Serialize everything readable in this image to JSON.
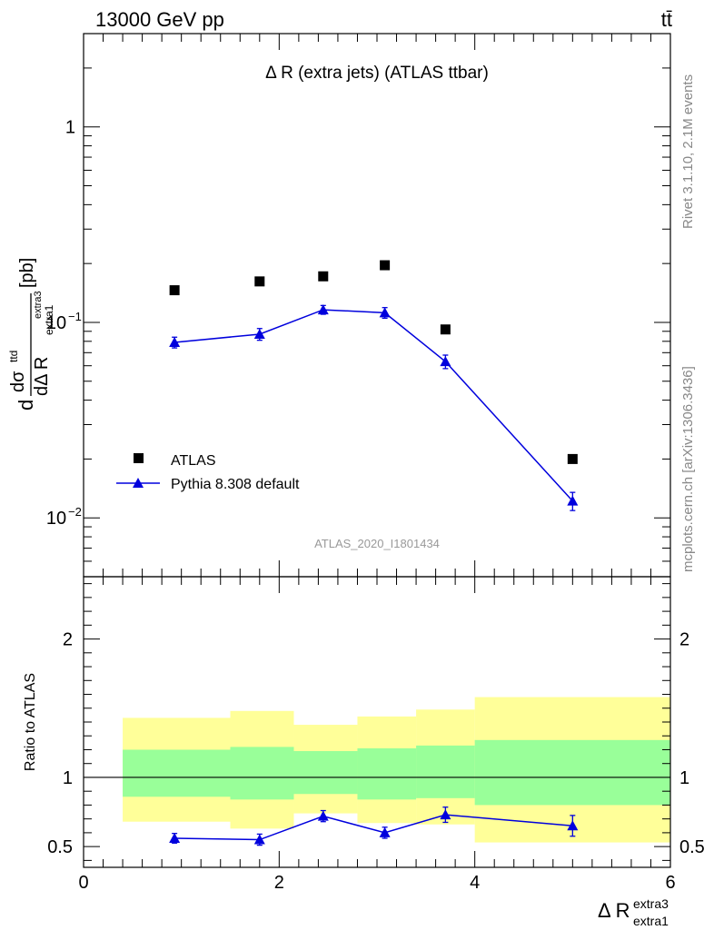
{
  "header": {
    "left": "13000 GeV pp",
    "right": "tt̄"
  },
  "side_labels": {
    "rivet": "Rivet 3.1.10,  2.1M events",
    "mcplots": "mcplots.cern.ch [arXiv:1306.3436]"
  },
  "chart_data": [
    {
      "type": "scatter",
      "title": "Δ R (extra jets) (ATLAS ttbar)",
      "analysis_id": "ATLAS_2020_I1801434",
      "ylabel_main": "d",
      "ylabel_num": "dσ",
      "ylabel_num_sup": "ttd",
      "ylabel_den": "dΔ R",
      "ylabel_den_sub": "extra1",
      "ylabel_den_sup": "extra3",
      "ylabel_unit": "[pb]",
      "yscale": "log",
      "ylim": [
        0.005,
        3.0
      ],
      "xlim": [
        0,
        6
      ],
      "ytick_labels": [
        {
          "value": 1,
          "label": "1"
        },
        {
          "value": 0.1,
          "label": "10",
          "exp": "−1"
        },
        {
          "value": 0.01,
          "label": "10",
          "exp": "−2"
        }
      ],
      "legend_position": "lower-left",
      "series": [
        {
          "name": "ATLAS",
          "marker": "square",
          "color": "#000000",
          "x": [
            0.93,
            1.8,
            2.45,
            3.08,
            3.7,
            5.0
          ],
          "y": [
            0.146,
            0.162,
            0.172,
            0.196,
            0.092,
            0.02
          ]
        },
        {
          "name": "Pythia 8.308 default",
          "marker": "triangle",
          "color": "#0000dd",
          "x": [
            0.93,
            1.8,
            2.45,
            3.08,
            3.7,
            5.0
          ],
          "y": [
            0.079,
            0.087,
            0.116,
            0.112,
            0.063,
            0.0122
          ],
          "yerr_lo": [
            0.005,
            0.006,
            0.006,
            0.007,
            0.005,
            0.0013
          ],
          "yerr_hi": [
            0.005,
            0.006,
            0.006,
            0.007,
            0.005,
            0.0013
          ]
        }
      ]
    },
    {
      "type": "scatter",
      "ylabel": "Ratio to ATLAS",
      "xlabel": "Δ R",
      "xlabel_sup": "extra3",
      "xlabel_sub": "extra1",
      "xlim": [
        0,
        6
      ],
      "ylim": [
        0.35,
        2.45
      ],
      "xtick_labels": [
        "0",
        "2",
        "4",
        "6"
      ],
      "ytick_labels": [
        "0.5",
        "1",
        "2"
      ],
      "reference_line": 1,
      "bands": [
        {
          "x0": 0.4,
          "x1": 1.5,
          "yellow": [
            0.68,
            1.43
          ],
          "green": [
            0.86,
            1.2
          ]
        },
        {
          "x0": 1.5,
          "x1": 2.15,
          "yellow": [
            0.63,
            1.48
          ],
          "green": [
            0.84,
            1.22
          ]
        },
        {
          "x0": 2.15,
          "x1": 2.8,
          "yellow": [
            0.74,
            1.38
          ],
          "green": [
            0.88,
            1.19
          ]
        },
        {
          "x0": 2.8,
          "x1": 3.4,
          "yellow": [
            0.67,
            1.44
          ],
          "green": [
            0.84,
            1.21
          ]
        },
        {
          "x0": 3.4,
          "x1": 4.0,
          "yellow": [
            0.66,
            1.49
          ],
          "green": [
            0.85,
            1.23
          ]
        },
        {
          "x0": 4.0,
          "x1": 6.0,
          "yellow": [
            0.53,
            1.58
          ],
          "green": [
            0.8,
            1.27
          ]
        }
      ],
      "series": [
        {
          "name": "Pythia 8.308 default",
          "color": "#0000dd",
          "x": [
            0.93,
            1.8,
            2.45,
            3.08,
            3.7,
            5.0
          ],
          "y": [
            0.56,
            0.55,
            0.72,
            0.6,
            0.73,
            0.65
          ],
          "yerr_lo": [
            0.035,
            0.04,
            0.04,
            0.04,
            0.055,
            0.075
          ],
          "yerr_hi": [
            0.035,
            0.04,
            0.04,
            0.04,
            0.055,
            0.075
          ]
        }
      ]
    }
  ]
}
